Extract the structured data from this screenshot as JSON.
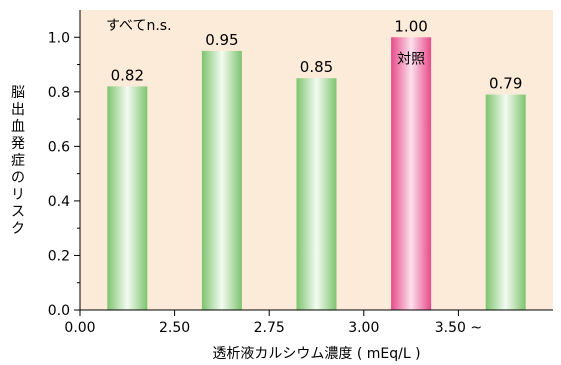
{
  "chart_data": {
    "type": "bar",
    "categories": [
      "0.00",
      "2.50",
      "2.75",
      "3.00",
      "3.50 ~"
    ],
    "values": [
      0.82,
      0.95,
      0.85,
      1.0,
      0.79
    ],
    "data_labels": [
      "0.82",
      "0.95",
      "0.85",
      "1.00",
      "0.79"
    ],
    "bar_styles": [
      "green",
      "green",
      "green",
      "pink",
      "green"
    ],
    "title": "",
    "xlabel": "透析液カルシウム濃度 ( mEq/L )",
    "ylabel": "脳出血発症のリスク",
    "ylim": [
      0,
      1.1
    ],
    "y_ticks": [
      "0.0",
      "0.2",
      "0.4",
      "0.6",
      "0.8",
      "1.0"
    ],
    "annotations": {
      "significance": "すべてn.s.",
      "reference": "対照"
    },
    "grid": false,
    "colors": {
      "plot_background": "#FDEBD9",
      "green_bar_edge": "#7DC46E",
      "green_bar_center": "#F4FBF2",
      "pink_bar_edge": "#E84A8A",
      "pink_bar_center": "#FBE0EC",
      "axis": "#000000"
    }
  }
}
